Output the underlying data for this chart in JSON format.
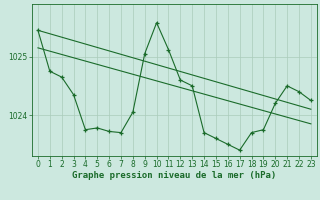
{
  "bg_color": "#cce8df",
  "grid_color": "#aaccbb",
  "line_color": "#1a6b2a",
  "xlabel": "Graphe pression niveau de la mer (hPa)",
  "xlabel_fontsize": 6.5,
  "tick_fontsize": 5.5,
  "yticks": [
    1024,
    1025
  ],
  "ylim": [
    1023.3,
    1025.9
  ],
  "xlim": [
    -0.5,
    23.5
  ],
  "xticks": [
    0,
    1,
    2,
    3,
    4,
    5,
    6,
    7,
    8,
    9,
    10,
    11,
    12,
    13,
    14,
    15,
    16,
    17,
    18,
    19,
    20,
    21,
    22,
    23
  ],
  "main_series": [
    1025.45,
    1024.75,
    1024.65,
    1024.35,
    1023.75,
    1023.78,
    1023.72,
    1023.7,
    1024.05,
    1025.05,
    1025.58,
    1025.12,
    1024.6,
    1024.5,
    1023.7,
    1023.6,
    1023.5,
    1023.4,
    1023.7,
    1023.75,
    1024.2,
    1024.5,
    1024.4,
    1024.25
  ],
  "trend_line1_x": [
    0,
    23
  ],
  "trend_line1_y": [
    1025.45,
    1024.1
  ],
  "trend_line2_x": [
    0,
    23
  ],
  "trend_line2_y": [
    1025.15,
    1023.85
  ],
  "figwidth": 3.2,
  "figheight": 2.0,
  "dpi": 100
}
